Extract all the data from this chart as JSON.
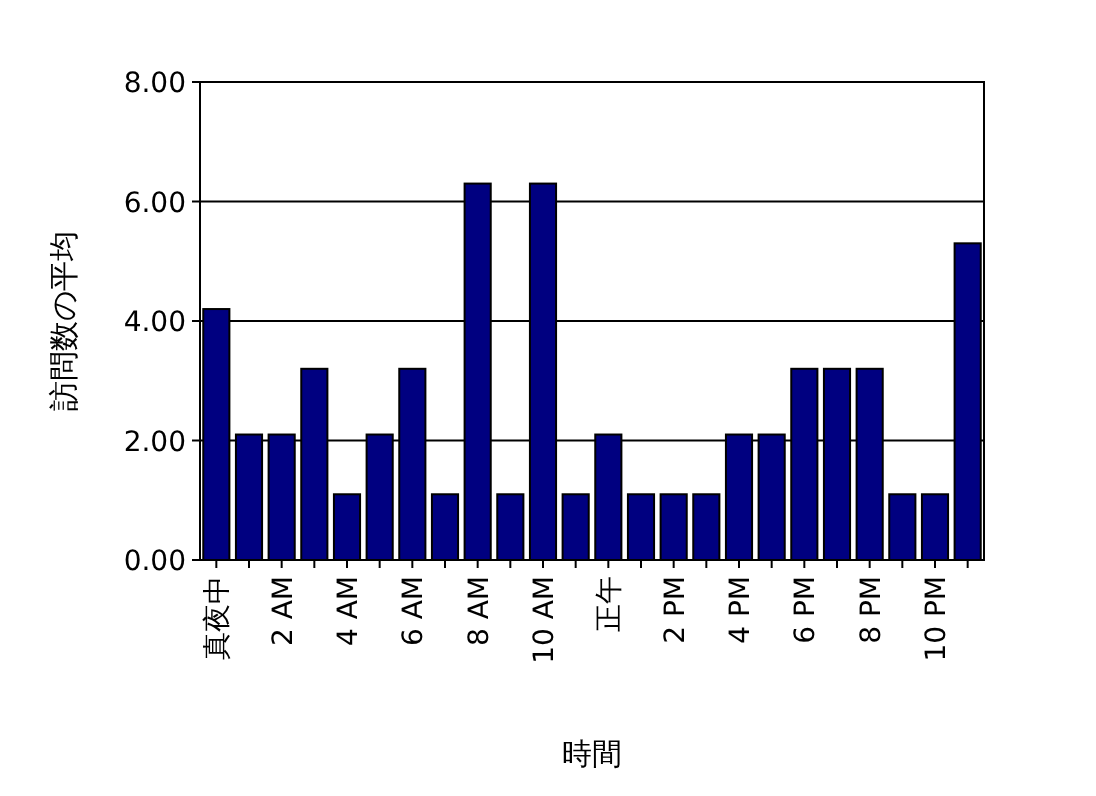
{
  "chart_data": {
    "type": "bar",
    "xlabel": "時間",
    "ylabel": "訪問数の平均",
    "categories": [
      "真夜中",
      null,
      "2 AM",
      null,
      "4 AM",
      null,
      "6 AM",
      null,
      "8 AM",
      null,
      "10 AM",
      null,
      "正午",
      null,
      "2 PM",
      null,
      "4 PM",
      null,
      "6 PM",
      null,
      "8 PM",
      null,
      "10 PM",
      null
    ],
    "values": [
      4.2,
      2.1,
      2.1,
      3.2,
      1.1,
      2.1,
      3.2,
      1.1,
      6.3,
      1.1,
      6.3,
      1.1,
      2.1,
      1.1,
      1.1,
      1.1,
      2.1,
      2.1,
      3.2,
      3.2,
      3.2,
      1.1,
      1.1,
      5.3
    ],
    "color": "#000080",
    "ylim": [
      0,
      8
    ],
    "yticks": [
      {
        "value": 0,
        "label": "0.00"
      },
      {
        "value": 2,
        "label": "2.00"
      },
      {
        "value": 4,
        "label": "4.00"
      },
      {
        "value": 6,
        "label": "6.00"
      },
      {
        "value": 8,
        "label": "8.00"
      }
    ],
    "grid": "y"
  }
}
